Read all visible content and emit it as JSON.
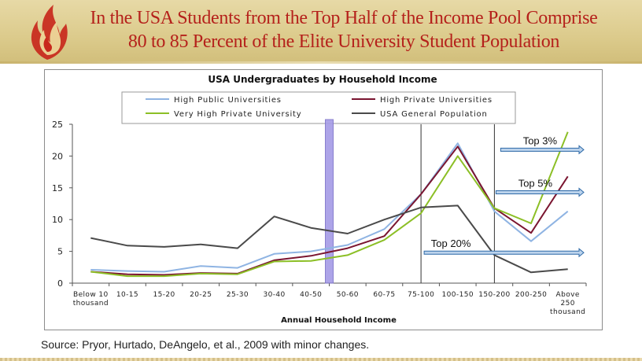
{
  "slide": {
    "title_line1": "In the USA Students from the Top Half of the Income Pool Comprise",
    "title_line2": "80 to 85 Percent of the Elite University Student Population",
    "source": "Source: Pryor, Hurtado, DeAngelo, et al., 2009 with minor changes.",
    "title_color": "#b5211b"
  },
  "chart_data": {
    "type": "line",
    "title": "USA Undergraduates by Household Income",
    "xlabel": "Annual Household Income",
    "ylabel": "",
    "ylim": [
      0,
      25
    ],
    "yticks": [
      0,
      5,
      10,
      15,
      20,
      25
    ],
    "grid": false,
    "legend_position": "top",
    "categories": [
      [
        "Below 10",
        "thousand"
      ],
      [
        "10-15"
      ],
      [
        "15-20"
      ],
      [
        "20-25"
      ],
      [
        "25-30"
      ],
      [
        "30-40"
      ],
      [
        "40-50"
      ],
      [
        "50-60"
      ],
      [
        "60-75"
      ],
      [
        "75-100"
      ],
      [
        "100-150"
      ],
      [
        "150-200"
      ],
      [
        "200-250"
      ],
      [
        "Above",
        "250",
        "thousand"
      ]
    ],
    "series": [
      {
        "name": "High Public Universities",
        "color": "#8fb4e3",
        "values": [
          2.1,
          1.9,
          1.8,
          2.7,
          2.4,
          4.6,
          5.0,
          6.0,
          8.5,
          14.0,
          22.0,
          11.3,
          6.6,
          11.3
        ]
      },
      {
        "name": "High Private Universities",
        "color": "#7a1530",
        "values": [
          1.8,
          1.4,
          1.3,
          1.6,
          1.5,
          3.6,
          4.3,
          5.5,
          7.4,
          14.0,
          21.5,
          11.8,
          7.9,
          16.8
        ]
      },
      {
        "name": "Very High Private University",
        "color": "#8cbf26",
        "values": [
          1.8,
          1.1,
          1.1,
          1.5,
          1.4,
          3.4,
          3.5,
          4.4,
          6.8,
          11.0,
          20.0,
          11.8,
          9.4,
          23.8
        ]
      },
      {
        "name": "USA General Population",
        "color": "#4a4a4a",
        "values": [
          7.1,
          5.9,
          5.7,
          6.1,
          5.5,
          10.5,
          8.7,
          7.8,
          10.0,
          11.9,
          12.2,
          4.4,
          1.7,
          2.2
        ]
      }
    ],
    "annotations": [
      {
        "text": "Top 3%",
        "y": 21
      },
      {
        "text": "Top 5%",
        "y": 14.3
      },
      {
        "text": "Top 20%",
        "y": 4.8
      }
    ],
    "divider_after_category": "40-50",
    "vertical_rules_at": [
      "75-100",
      "150-200"
    ]
  }
}
